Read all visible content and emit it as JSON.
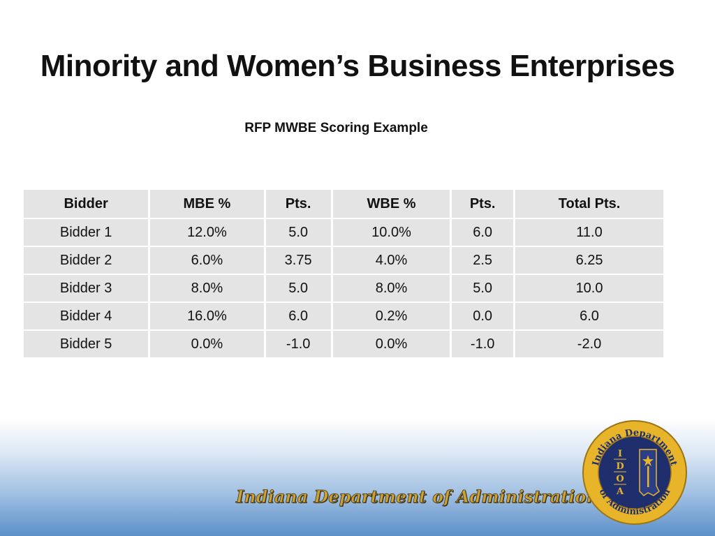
{
  "slide": {
    "title": "Minority and Women’s Business Enterprises",
    "subtitle": "RFP MWBE Scoring Example"
  },
  "table": {
    "headers": [
      "Bidder",
      "MBE %",
      "Pts.",
      "WBE %",
      "Pts.",
      "Total Pts."
    ],
    "rows": [
      [
        "Bidder 1",
        "12.0%",
        "5.0",
        "10.0%",
        "6.0",
        "11.0"
      ],
      [
        "Bidder 2",
        "6.0%",
        "3.75",
        "4.0%",
        "2.5",
        "6.25"
      ],
      [
        "Bidder 3",
        "8.0%",
        "5.0",
        "8.0%",
        "5.0",
        "10.0"
      ],
      [
        "Bidder 4",
        "16.0%",
        "6.0",
        "0.2%",
        "0.0",
        "6.0"
      ],
      [
        "Bidder 5",
        "0.0%",
        "-1.0",
        "0.0%",
        "-1.0",
        "-2.0"
      ]
    ]
  },
  "footer": {
    "dept_name": "Indiana Department of Administration",
    "seal_top_text": "Indiana Department",
    "seal_bottom_text": "of Administration",
    "seal_letters": [
      "I",
      "D",
      "O",
      "A"
    ]
  },
  "colors": {
    "seal_navy": "#1f2f6e",
    "seal_gold": "#e8b52a",
    "footer_gradient_end": "#5c8fc9"
  }
}
